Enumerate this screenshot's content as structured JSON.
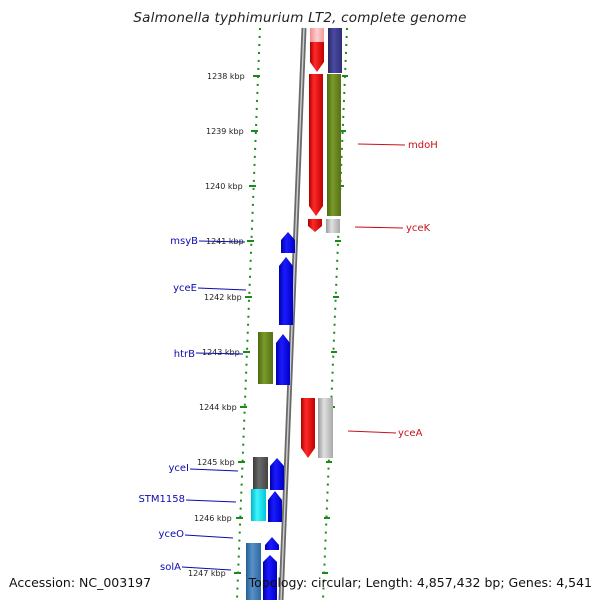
{
  "title": "Salmonella typhimurium LT2, complete genome",
  "footer": {
    "accession": "Accession: NC_003197",
    "stats": "Topology: circular; Length: 4,857,432 bp; Genes: 4,541"
  },
  "colors": {
    "forward_cds": "#0a0aee",
    "reverse_cds": "#ee0a0a",
    "forward_label": "#0b0bb0",
    "reverse_label": "#c8101a",
    "ruler_tick": "#1a8a1a",
    "backbone": "#8a8a8a"
  },
  "ticks": [
    "1238 kbp",
    "1239 kbp",
    "1240 kbp",
    "1241 kbp",
    "1242 kbp",
    "1243 kbp",
    "1244 kbp",
    "1245 kbp",
    "1246 kbp",
    "1247 kbp"
  ],
  "gene_labels": {
    "mdoH": "mdoH",
    "yceK": "yceK",
    "yceA": "yceA",
    "msyB": "msyB",
    "yceE": "yceE",
    "htrB": "htrB",
    "yceI": "yceI",
    "STM1158": "STM1158",
    "yceO": "yceO",
    "solA": "solA"
  }
}
